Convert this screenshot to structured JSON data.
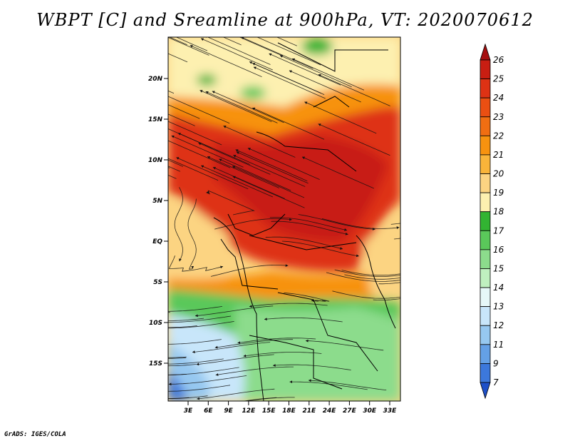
{
  "title": "WBPT [C] and Sreamline at 900hPa, VT: 2020070612",
  "credit": "GrADS: IGES/COLA",
  "map": {
    "lat_ticks": [
      "20N",
      "15N",
      "10N",
      "5N",
      "EQ",
      "5S",
      "10S",
      "15S"
    ],
    "lon_ticks": [
      "3E",
      "6E",
      "9E",
      "12E",
      "15E",
      "18E",
      "21E",
      "24E",
      "27E",
      "30E",
      "33E"
    ]
  },
  "colorbar": {
    "labels": [
      "26",
      "25",
      "24",
      "23",
      "22",
      "21",
      "20",
      "19",
      "18",
      "17",
      "16",
      "15",
      "14",
      "13",
      "12",
      "11",
      "9",
      "7"
    ],
    "colors": [
      "#a50f0f",
      "#c81e12",
      "#de3214",
      "#ea4f12",
      "#f06e12",
      "#f7920f",
      "#f9b43a",
      "#fcd482",
      "#fdf0b0",
      "#32b432",
      "#5ac85a",
      "#8cdc8c",
      "#bff0bf",
      "#e6f8f8",
      "#c8e6fa",
      "#96c8f0",
      "#64a0e6",
      "#3c78dc",
      "#1e50c8"
    ]
  }
}
